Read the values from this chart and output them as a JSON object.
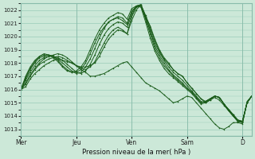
{
  "title": "",
  "xlabel": "Pression niveau de la mer( hPa )",
  "background_color": "#cce8d8",
  "grid_color": "#99ccb8",
  "line_color": "#1a5c1a",
  "ylim": [
    1012.5,
    1022.5
  ],
  "yticks": [
    1013,
    1014,
    1015,
    1016,
    1017,
    1018,
    1019,
    1020,
    1021,
    1022
  ],
  "xtick_labels": [
    "Mer",
    "Jeu",
    "Ven",
    "Sam",
    "D"
  ],
  "xtick_positions": [
    0,
    48,
    96,
    144,
    192
  ],
  "total_hours": 200,
  "series": [
    {
      "points": [
        [
          0,
          1016
        ],
        [
          4,
          1016.2
        ],
        [
          8,
          1016.8
        ],
        [
          12,
          1017.2
        ],
        [
          16,
          1017.5
        ],
        [
          20,
          1017.8
        ],
        [
          24,
          1018.0
        ],
        [
          28,
          1018.2
        ],
        [
          32,
          1018.3
        ],
        [
          36,
          1018.2
        ],
        [
          40,
          1018.1
        ],
        [
          44,
          1018.0
        ],
        [
          48,
          1017.8
        ],
        [
          52,
          1017.5
        ],
        [
          56,
          1017.3
        ],
        [
          60,
          1017.0
        ],
        [
          64,
          1017.0
        ],
        [
          68,
          1017.1
        ],
        [
          72,
          1017.2
        ],
        [
          76,
          1017.4
        ],
        [
          80,
          1017.6
        ],
        [
          84,
          1017.8
        ],
        [
          88,
          1018.0
        ],
        [
          92,
          1018.1
        ],
        [
          96,
          1017.7
        ],
        [
          100,
          1017.3
        ],
        [
          104,
          1016.9
        ],
        [
          108,
          1016.5
        ],
        [
          112,
          1016.3
        ],
        [
          116,
          1016.1
        ],
        [
          120,
          1015.9
        ],
        [
          124,
          1015.6
        ],
        [
          128,
          1015.3
        ],
        [
          132,
          1015.0
        ],
        [
          136,
          1015.1
        ],
        [
          140,
          1015.3
        ],
        [
          144,
          1015.5
        ],
        [
          148,
          1015.4
        ],
        [
          152,
          1015.0
        ],
        [
          156,
          1014.6
        ],
        [
          160,
          1014.2
        ],
        [
          164,
          1013.8
        ],
        [
          168,
          1013.4
        ],
        [
          172,
          1013.1
        ],
        [
          176,
          1013.0
        ],
        [
          180,
          1013.2
        ],
        [
          184,
          1013.5
        ],
        [
          188,
          1013.5
        ],
        [
          192,
          1013.4
        ],
        [
          196,
          1015.1
        ],
        [
          200,
          1015.5
        ]
      ]
    },
    {
      "points": [
        [
          0,
          1016
        ],
        [
          4,
          1016.4
        ],
        [
          8,
          1017.0
        ],
        [
          12,
          1017.5
        ],
        [
          16,
          1017.9
        ],
        [
          20,
          1018.1
        ],
        [
          24,
          1018.3
        ],
        [
          28,
          1018.4
        ],
        [
          32,
          1018.5
        ],
        [
          36,
          1018.4
        ],
        [
          40,
          1018.2
        ],
        [
          44,
          1018.0
        ],
        [
          48,
          1017.8
        ],
        [
          52,
          1017.7
        ],
        [
          56,
          1017.7
        ],
        [
          60,
          1017.8
        ],
        [
          64,
          1018.0
        ],
        [
          68,
          1018.5
        ],
        [
          72,
          1019.2
        ],
        [
          76,
          1019.8
        ],
        [
          80,
          1020.2
        ],
        [
          84,
          1020.5
        ],
        [
          88,
          1020.4
        ],
        [
          92,
          1020.2
        ],
        [
          96,
          1021.5
        ],
        [
          100,
          1022.2
        ],
        [
          104,
          1022.3
        ],
        [
          108,
          1021.5
        ],
        [
          112,
          1020.8
        ],
        [
          116,
          1019.8
        ],
        [
          120,
          1019.0
        ],
        [
          124,
          1018.4
        ],
        [
          128,
          1018.0
        ],
        [
          132,
          1017.5
        ],
        [
          136,
          1017.2
        ],
        [
          140,
          1017.0
        ],
        [
          144,
          1016.5
        ],
        [
          148,
          1016.1
        ],
        [
          152,
          1015.7
        ],
        [
          156,
          1015.3
        ],
        [
          160,
          1015.0
        ],
        [
          164,
          1015.2
        ],
        [
          168,
          1015.4
        ],
        [
          172,
          1015.2
        ],
        [
          176,
          1014.8
        ],
        [
          180,
          1014.4
        ],
        [
          184,
          1014.0
        ],
        [
          188,
          1013.6
        ],
        [
          192,
          1013.6
        ],
        [
          196,
          1015.0
        ],
        [
          200,
          1015.5
        ]
      ]
    },
    {
      "points": [
        [
          0,
          1016
        ],
        [
          4,
          1016.5
        ],
        [
          8,
          1017.1
        ],
        [
          12,
          1017.6
        ],
        [
          16,
          1018.0
        ],
        [
          20,
          1018.3
        ],
        [
          24,
          1018.5
        ],
        [
          28,
          1018.6
        ],
        [
          32,
          1018.7
        ],
        [
          36,
          1018.6
        ],
        [
          40,
          1018.4
        ],
        [
          44,
          1018.1
        ],
        [
          48,
          1017.8
        ],
        [
          52,
          1017.6
        ],
        [
          56,
          1017.5
        ],
        [
          60,
          1017.7
        ],
        [
          64,
          1018.1
        ],
        [
          68,
          1018.8
        ],
        [
          72,
          1019.5
        ],
        [
          76,
          1020.1
        ],
        [
          80,
          1020.5
        ],
        [
          84,
          1020.7
        ],
        [
          88,
          1020.5
        ],
        [
          92,
          1020.2
        ],
        [
          96,
          1021.2
        ],
        [
          100,
          1022.0
        ],
        [
          104,
          1022.4
        ],
        [
          108,
          1021.6
        ],
        [
          112,
          1020.7
        ],
        [
          116,
          1019.7
        ],
        [
          120,
          1018.9
        ],
        [
          124,
          1018.3
        ],
        [
          128,
          1017.9
        ],
        [
          132,
          1017.5
        ],
        [
          136,
          1017.2
        ],
        [
          140,
          1017.0
        ],
        [
          144,
          1016.5
        ],
        [
          148,
          1016.1
        ],
        [
          152,
          1015.7
        ],
        [
          156,
          1015.3
        ],
        [
          160,
          1015.1
        ],
        [
          164,
          1015.3
        ],
        [
          168,
          1015.5
        ],
        [
          172,
          1015.4
        ],
        [
          176,
          1014.9
        ],
        [
          180,
          1014.5
        ],
        [
          184,
          1014.1
        ],
        [
          188,
          1013.7
        ],
        [
          192,
          1013.6
        ],
        [
          196,
          1015.0
        ],
        [
          200,
          1015.5
        ]
      ]
    },
    {
      "points": [
        [
          0,
          1016
        ],
        [
          4,
          1016.7
        ],
        [
          8,
          1017.3
        ],
        [
          12,
          1017.8
        ],
        [
          16,
          1018.2
        ],
        [
          20,
          1018.4
        ],
        [
          24,
          1018.5
        ],
        [
          28,
          1018.5
        ],
        [
          32,
          1018.4
        ],
        [
          36,
          1018.2
        ],
        [
          40,
          1017.9
        ],
        [
          44,
          1017.6
        ],
        [
          48,
          1017.3
        ],
        [
          52,
          1017.2
        ],
        [
          56,
          1017.4
        ],
        [
          60,
          1017.9
        ],
        [
          64,
          1018.6
        ],
        [
          68,
          1019.4
        ],
        [
          72,
          1020.1
        ],
        [
          76,
          1020.6
        ],
        [
          80,
          1020.9
        ],
        [
          84,
          1021.1
        ],
        [
          88,
          1021.0
        ],
        [
          92,
          1020.7
        ],
        [
          96,
          1021.6
        ],
        [
          100,
          1022.3
        ],
        [
          104,
          1022.4
        ],
        [
          108,
          1021.5
        ],
        [
          112,
          1020.5
        ],
        [
          116,
          1019.5
        ],
        [
          120,
          1018.8
        ],
        [
          124,
          1018.2
        ],
        [
          128,
          1017.7
        ],
        [
          132,
          1017.3
        ],
        [
          136,
          1017.0
        ],
        [
          140,
          1016.7
        ],
        [
          144,
          1016.3
        ],
        [
          148,
          1015.9
        ],
        [
          152,
          1015.5
        ],
        [
          156,
          1015.1
        ],
        [
          160,
          1015.0
        ],
        [
          164,
          1015.2
        ],
        [
          168,
          1015.5
        ],
        [
          172,
          1015.4
        ],
        [
          176,
          1014.9
        ],
        [
          180,
          1014.5
        ],
        [
          184,
          1014.1
        ],
        [
          188,
          1013.7
        ],
        [
          192,
          1013.6
        ],
        [
          196,
          1015.0
        ],
        [
          200,
          1015.5
        ]
      ]
    },
    {
      "points": [
        [
          0,
          1016
        ],
        [
          4,
          1016.8
        ],
        [
          8,
          1017.5
        ],
        [
          12,
          1018.0
        ],
        [
          16,
          1018.4
        ],
        [
          20,
          1018.5
        ],
        [
          24,
          1018.6
        ],
        [
          28,
          1018.5
        ],
        [
          32,
          1018.3
        ],
        [
          36,
          1018.0
        ],
        [
          40,
          1017.7
        ],
        [
          44,
          1017.4
        ],
        [
          48,
          1017.2
        ],
        [
          52,
          1017.3
        ],
        [
          56,
          1017.7
        ],
        [
          60,
          1018.3
        ],
        [
          64,
          1019.1
        ],
        [
          68,
          1019.9
        ],
        [
          72,
          1020.6
        ],
        [
          76,
          1021.1
        ],
        [
          80,
          1021.3
        ],
        [
          84,
          1021.4
        ],
        [
          88,
          1021.2
        ],
        [
          92,
          1020.9
        ],
        [
          96,
          1021.8
        ],
        [
          100,
          1022.3
        ],
        [
          104,
          1022.4
        ],
        [
          108,
          1021.4
        ],
        [
          112,
          1020.4
        ],
        [
          116,
          1019.3
        ],
        [
          120,
          1018.6
        ],
        [
          124,
          1018.0
        ],
        [
          128,
          1017.5
        ],
        [
          132,
          1017.1
        ],
        [
          136,
          1016.8
        ],
        [
          140,
          1016.5
        ],
        [
          144,
          1016.1
        ],
        [
          148,
          1015.8
        ],
        [
          152,
          1015.4
        ],
        [
          156,
          1015.0
        ],
        [
          160,
          1015.1
        ],
        [
          164,
          1015.3
        ],
        [
          168,
          1015.5
        ],
        [
          172,
          1015.4
        ],
        [
          176,
          1014.9
        ],
        [
          180,
          1014.4
        ],
        [
          184,
          1014.0
        ],
        [
          188,
          1013.6
        ],
        [
          192,
          1013.6
        ],
        [
          196,
          1015.0
        ],
        [
          200,
          1015.5
        ]
      ]
    },
    {
      "points": [
        [
          0,
          1016
        ],
        [
          4,
          1016.9
        ],
        [
          8,
          1017.6
        ],
        [
          12,
          1018.1
        ],
        [
          16,
          1018.5
        ],
        [
          20,
          1018.6
        ],
        [
          24,
          1018.6
        ],
        [
          28,
          1018.5
        ],
        [
          32,
          1018.2
        ],
        [
          36,
          1017.8
        ],
        [
          40,
          1017.5
        ],
        [
          44,
          1017.3
        ],
        [
          48,
          1017.3
        ],
        [
          52,
          1017.5
        ],
        [
          56,
          1018.0
        ],
        [
          60,
          1018.7
        ],
        [
          64,
          1019.5
        ],
        [
          68,
          1020.2
        ],
        [
          72,
          1020.7
        ],
        [
          76,
          1021.1
        ],
        [
          80,
          1021.3
        ],
        [
          84,
          1021.5
        ],
        [
          88,
          1021.4
        ],
        [
          92,
          1021.0
        ],
        [
          96,
          1021.9
        ],
        [
          100,
          1022.3
        ],
        [
          104,
          1022.3
        ],
        [
          108,
          1021.3
        ],
        [
          112,
          1020.2
        ],
        [
          116,
          1019.1
        ],
        [
          120,
          1018.4
        ],
        [
          124,
          1017.8
        ],
        [
          128,
          1017.4
        ],
        [
          132,
          1017.0
        ],
        [
          136,
          1016.7
        ],
        [
          140,
          1016.4
        ],
        [
          144,
          1016.1
        ],
        [
          148,
          1015.8
        ],
        [
          152,
          1015.4
        ],
        [
          156,
          1015.0
        ],
        [
          160,
          1015.1
        ],
        [
          164,
          1015.3
        ],
        [
          168,
          1015.5
        ],
        [
          172,
          1015.4
        ],
        [
          176,
          1014.9
        ],
        [
          180,
          1014.4
        ],
        [
          184,
          1014.0
        ],
        [
          188,
          1013.6
        ],
        [
          192,
          1013.5
        ],
        [
          196,
          1015.0
        ],
        [
          200,
          1015.5
        ]
      ]
    },
    {
      "points": [
        [
          0,
          1016
        ],
        [
          4,
          1017.0
        ],
        [
          8,
          1017.7
        ],
        [
          12,
          1018.2
        ],
        [
          16,
          1018.5
        ],
        [
          20,
          1018.7
        ],
        [
          24,
          1018.6
        ],
        [
          28,
          1018.4
        ],
        [
          32,
          1018.1
        ],
        [
          36,
          1017.7
        ],
        [
          40,
          1017.4
        ],
        [
          44,
          1017.3
        ],
        [
          48,
          1017.4
        ],
        [
          52,
          1017.7
        ],
        [
          56,
          1018.2
        ],
        [
          60,
          1019.0
        ],
        [
          64,
          1019.8
        ],
        [
          68,
          1020.5
        ],
        [
          72,
          1021.0
        ],
        [
          76,
          1021.4
        ],
        [
          80,
          1021.6
        ],
        [
          84,
          1021.8
        ],
        [
          88,
          1021.7
        ],
        [
          92,
          1021.3
        ],
        [
          96,
          1022.1
        ],
        [
          100,
          1022.3
        ],
        [
          104,
          1022.2
        ],
        [
          108,
          1021.1
        ],
        [
          112,
          1019.9
        ],
        [
          116,
          1018.9
        ],
        [
          120,
          1018.2
        ],
        [
          124,
          1017.6
        ],
        [
          128,
          1017.2
        ],
        [
          132,
          1016.9
        ],
        [
          136,
          1016.6
        ],
        [
          140,
          1016.3
        ],
        [
          144,
          1016.0
        ],
        [
          148,
          1015.7
        ],
        [
          152,
          1015.3
        ],
        [
          156,
          1014.9
        ],
        [
          160,
          1015.0
        ],
        [
          164,
          1015.3
        ],
        [
          168,
          1015.5
        ],
        [
          172,
          1015.4
        ],
        [
          176,
          1014.9
        ],
        [
          180,
          1014.4
        ],
        [
          184,
          1014.0
        ],
        [
          188,
          1013.6
        ],
        [
          192,
          1013.5
        ],
        [
          196,
          1015.0
        ],
        [
          200,
          1015.5
        ]
      ]
    }
  ]
}
